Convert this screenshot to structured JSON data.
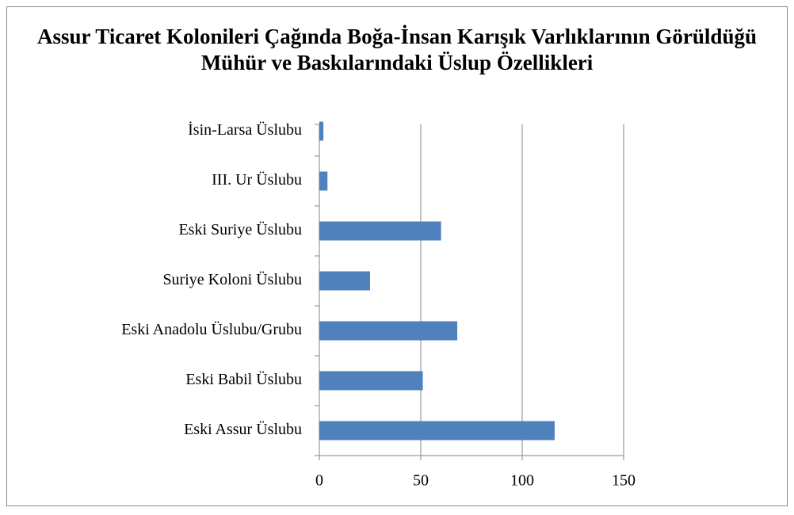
{
  "chart_data": {
    "type": "barh",
    "title": "Assur Ticaret Kolonileri Çağında Boğa-İnsan Karışık Varlıklarının Görüldüğü Mühür ve Baskılarındaki Üslup Özellikleri",
    "categories": [
      "İsin-Larsa Üslubu",
      "III. Ur Üslubu",
      "Eski Suriye Üslubu",
      "Suriye Koloni Üslubu",
      "Eski Anadolu Üslubu/Grubu",
      "Eski Babil Üslubu",
      "Eski Assur Üslubu"
    ],
    "values": [
      2,
      4,
      60,
      25,
      68,
      51,
      116
    ],
    "color": "#4f81bd",
    "xlim": [
      0,
      150
    ],
    "xticks": [
      0,
      50,
      100,
      150
    ],
    "grid": true
  }
}
